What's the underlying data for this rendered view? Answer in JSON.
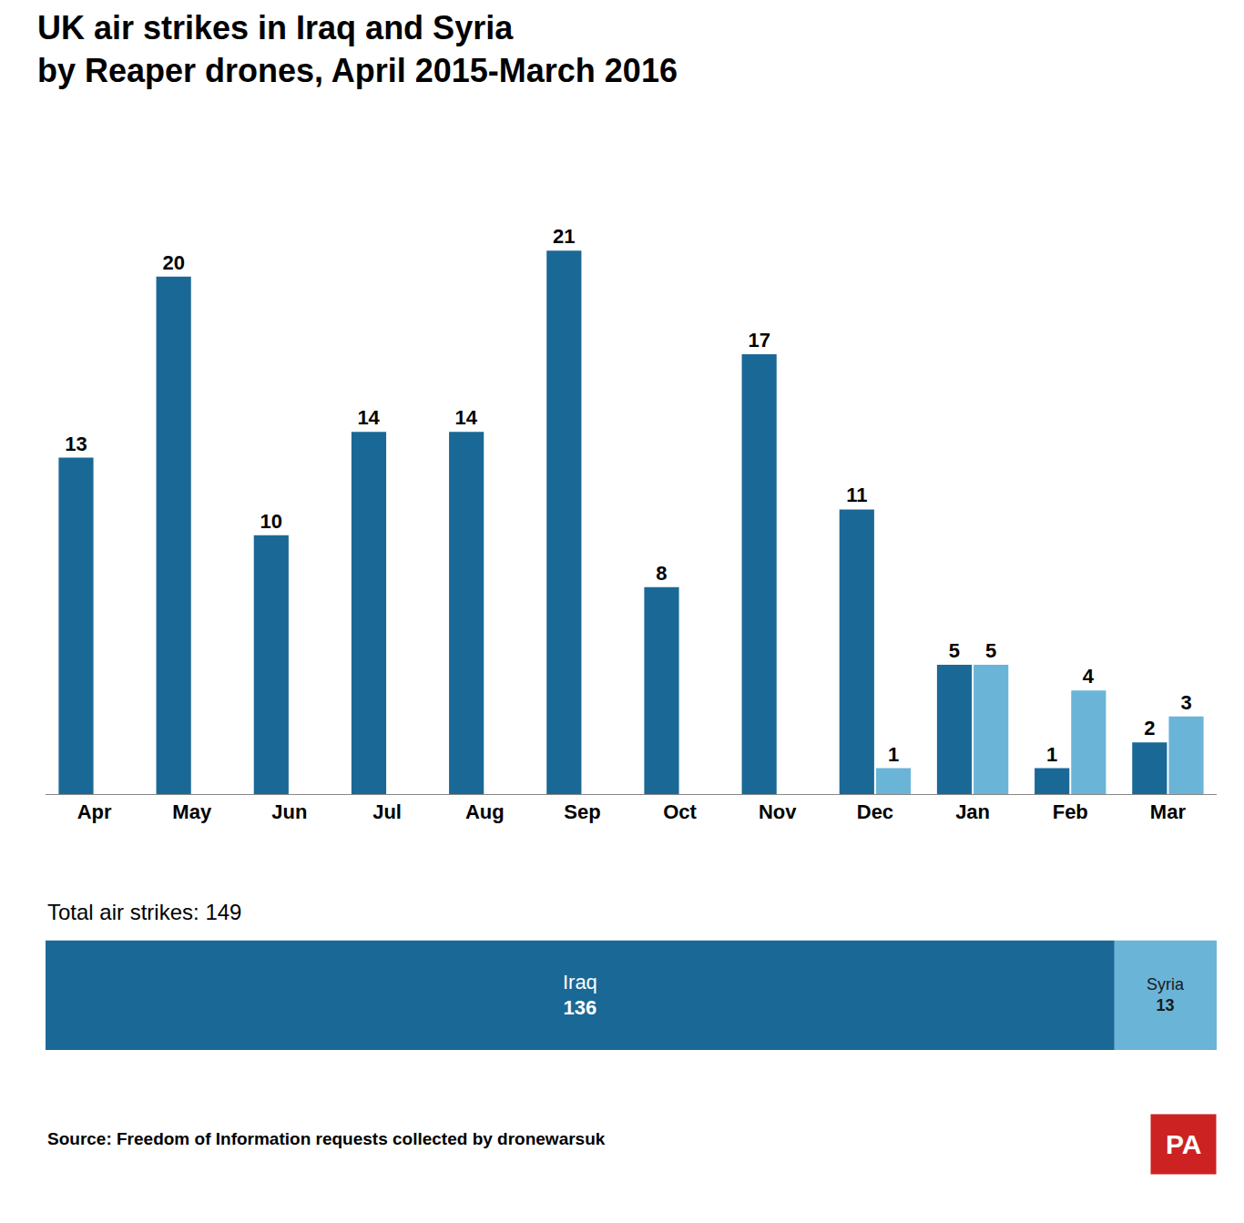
{
  "chart_data": [
    {
      "type": "bar",
      "title": "UK air strikes in Iraq and Syria",
      "subtitle": "by Reaper drones, April 2015-March 2016",
      "categories": [
        "Apr",
        "May",
        "Jun",
        "Jul",
        "Aug",
        "Sep",
        "Oct",
        "Nov",
        "Dec",
        "Jan",
        "Feb",
        "Mar"
      ],
      "series": [
        {
          "name": "Iraq",
          "color": "#1a6896",
          "values": [
            13,
            20,
            10,
            14,
            14,
            21,
            8,
            17,
            11,
            5,
            1,
            2
          ]
        },
        {
          "name": "Syria",
          "color": "#6ab4d8",
          "values": [
            0,
            0,
            0,
            0,
            0,
            0,
            0,
            0,
            1,
            5,
            4,
            3
          ]
        }
      ],
      "ylim": [
        0,
        24
      ],
      "grid": false,
      "data_labels": true,
      "tick_labels": "x"
    },
    {
      "type": "bar",
      "title": "Total air strikes: 149",
      "orientation": "horizontal",
      "stacked": true,
      "categories": [
        null
      ],
      "series": [
        {
          "name": "Iraq",
          "color": "#1a6896",
          "values": [
            136
          ]
        },
        {
          "name": "Syria",
          "color": "#6ab4d8",
          "values": [
            13
          ]
        }
      ],
      "xlim": [
        0,
        149
      ],
      "data_labels": true,
      "tick_labels": false,
      "annotations": [
        "Source: Freedom of Information requests collected by dronewarsuk",
        "PA"
      ]
    }
  ]
}
